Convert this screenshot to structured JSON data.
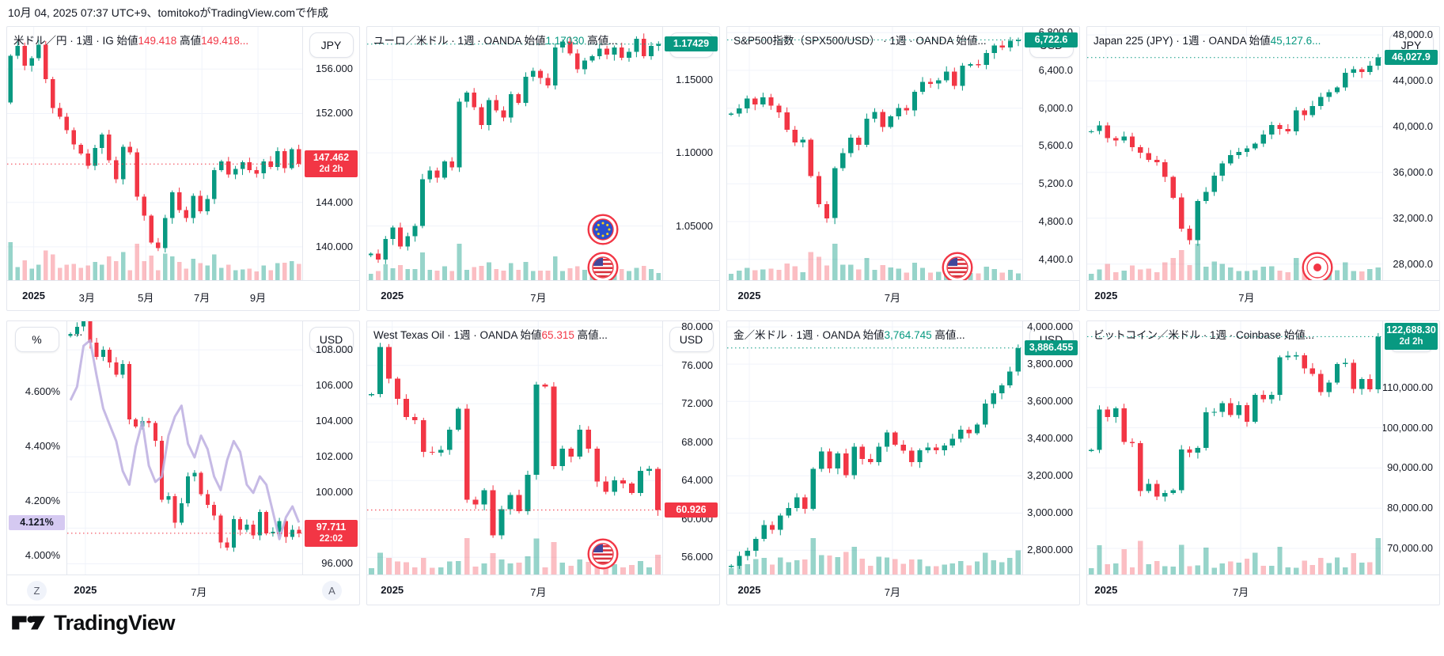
{
  "header": {
    "date_line": "10月 04, 2025 07:37 UTC+9、tomitokoがTradingView.comで作成"
  },
  "footer": {
    "logo_text": "TradingView"
  },
  "colors": {
    "up": "#089981",
    "down": "#F23645",
    "vol_up": "rgba(8,153,129,0.42)",
    "vol_down": "rgba(242,54,69,0.32)",
    "line_purple": "#BCAEE0",
    "badge_purple_bg": "#D5C9F1",
    "grid": "#F0F3FA",
    "border": "#E4E7EE",
    "text": "#131722"
  },
  "chart_data": [
    {
      "name": "usdjpy",
      "type": "candlestick",
      "legend": [
        {
          "text": "米ドル／円 · 1週 · IG  始値",
          "tone": "plain"
        },
        {
          "text": "149.418",
          "tone": "down"
        },
        {
          "text": " 高値",
          "tone": "plain"
        },
        {
          "text": "149.418...",
          "tone": "down"
        }
      ],
      "unit": "JPY",
      "axis": {
        "min": 137.0,
        "max": 159.8,
        "ticks": [
          {
            "v": 156,
            "label": "156.000"
          },
          {
            "v": 152,
            "label": "152.000"
          },
          {
            "v": 148,
            "label": "148.000"
          },
          {
            "v": 144,
            "label": "144.000"
          },
          {
            "v": 140,
            "label": "140.000"
          }
        ]
      },
      "badge": {
        "label": "147.462",
        "sub": "2d 2h",
        "tone": "down",
        "value": 147.462
      },
      "dotted": {
        "value": 147.462,
        "tone": "down"
      },
      "open0": 153.0,
      "closes": [
        157.2,
        158.1,
        156.3,
        157.0,
        158.2,
        155.1,
        152.5,
        151.7,
        150.5,
        149.2,
        148.4,
        147.3,
        148.9,
        150.1,
        147.8,
        146.1,
        149.0,
        148.5,
        144.5,
        142.8,
        140.4,
        139.9,
        142.6,
        144.9,
        143.3,
        142.6,
        144.6,
        143.2,
        144.3,
        146.9,
        147.7,
        146.5,
        147.0,
        147.6,
        146.9,
        146.6,
        147.7,
        147.2,
        148.6,
        147.1,
        148.8,
        147.462
      ],
      "time_labels": [
        {
          "text": "2025",
          "x": 0.09,
          "bold": true
        },
        {
          "text": "3月",
          "x": 0.27
        },
        {
          "text": "5月",
          "x": 0.47
        },
        {
          "text": "7月",
          "x": 0.66
        },
        {
          "text": "9月",
          "x": 0.85
        }
      ],
      "flags": []
    },
    {
      "name": "eurusd",
      "type": "candlestick",
      "legend": [
        {
          "text": "ユーロ／米ドル · 1週 · OANDA  始値",
          "tone": "plain"
        },
        {
          "text": "1.17030",
          "tone": "up"
        },
        {
          "text": " 高値...",
          "tone": "plain"
        }
      ],
      "unit": "USD",
      "axis": {
        "min": 1.013,
        "max": 1.186,
        "ticks": [
          {
            "v": 1.15,
            "label": "1.15000"
          },
          {
            "v": 1.1,
            "label": "1.10000"
          },
          {
            "v": 1.05,
            "label": "1.05000"
          }
        ]
      },
      "badge": {
        "label": "1.17429",
        "tone": "up",
        "value": 1.17429
      },
      "dotted": {
        "value": 1.17429,
        "tone": "up"
      },
      "closes": [
        1.031,
        1.027,
        1.041,
        1.049,
        1.036,
        1.043,
        1.05,
        1.082,
        1.088,
        1.083,
        1.094,
        1.09,
        1.135,
        1.141,
        1.131,
        1.119,
        1.136,
        1.129,
        1.124,
        1.14,
        1.134,
        1.152,
        1.156,
        1.151,
        1.146,
        1.172,
        1.176,
        1.168,
        1.157,
        1.163,
        1.166,
        1.171,
        1.167,
        1.172,
        1.165,
        1.169,
        1.178,
        1.166,
        1.173,
        1.17429
      ],
      "time_labels": [
        {
          "text": "2025",
          "x": 0.085,
          "bold": true
        },
        {
          "text": "7月",
          "x": 0.58
        }
      ],
      "flags": [
        {
          "type": "eu",
          "x": 0.8,
          "y": 0.8
        },
        {
          "type": "us",
          "x": 0.8,
          "y": 0.95
        }
      ]
    },
    {
      "name": "spx500",
      "type": "candlestick",
      "legend": [
        {
          "text": "S&P500指数（SPX500/USD） · 1週 · OANDA  始値...",
          "tone": "plain"
        }
      ],
      "unit": "USD",
      "axis": {
        "min": 4180,
        "max": 6860,
        "ticks": [
          {
            "v": 6800,
            "label": "6,800.0"
          },
          {
            "v": 6400,
            "label": "6,400.0"
          },
          {
            "v": 6000,
            "label": "6,000.0"
          },
          {
            "v": 5600,
            "label": "5,600.0"
          },
          {
            "v": 5200,
            "label": "5,200.0"
          },
          {
            "v": 4800,
            "label": "4,800.0"
          },
          {
            "v": 4400,
            "label": "4,400.0"
          }
        ]
      },
      "badge": {
        "label": "6,722.6",
        "tone": "up",
        "value": 6722.6
      },
      "dotted": {
        "value": 6722.6,
        "tone": "up"
      },
      "closes": [
        5942,
        5996,
        6101,
        6040,
        6114,
        6025,
        5954,
        5770,
        5638,
        5667,
        5282,
        4983,
        4835,
        5363,
        5525,
        5686,
        5611,
        5888,
        5958,
        5802,
        5912,
        6000,
        5977,
        6173,
        6279,
        6259,
        6296,
        6388,
        6238,
        6449,
        6466,
        6460,
        6584,
        6664,
        6643,
        6715,
        6722.6
      ],
      "time_labels": [
        {
          "text": "2025",
          "x": 0.075,
          "bold": true
        },
        {
          "text": "7月",
          "x": 0.56
        }
      ],
      "flags": [
        {
          "type": "us",
          "x": 0.78,
          "y": 0.95
        }
      ]
    },
    {
      "name": "japan225",
      "type": "candlestick",
      "legend": [
        {
          "text": "Japan 225 (JPY) · 1週 · OANDA  始値",
          "tone": "plain"
        },
        {
          "text": "45,127.6...",
          "tone": "up"
        }
      ],
      "unit": "JPY",
      "axis": {
        "min": 26600,
        "max": 48700,
        "ticks": [
          {
            "v": 48000,
            "label": "48,000.0"
          },
          {
            "v": 44000,
            "label": "44,000.0"
          },
          {
            "v": 40000,
            "label": "40,000.0"
          },
          {
            "v": 36000,
            "label": "36,000.0"
          },
          {
            "v": 32000,
            "label": "32,000.0"
          },
          {
            "v": 28000,
            "label": "28,000.0"
          }
        ]
      },
      "badge": {
        "label": "46,027.9",
        "tone": "up",
        "value": 46027.9
      },
      "dotted": {
        "value": 46027.9,
        "tone": "up"
      },
      "closes": [
        39600,
        40100,
        39000,
        38800,
        39150,
        38200,
        37700,
        37100,
        36900,
        35600,
        33800,
        31100,
        30100,
        33500,
        34300,
        35700,
        36800,
        37500,
        37800,
        38100,
        38500,
        39300,
        40150,
        39800,
        39600,
        41400,
        41000,
        41800,
        42600,
        43000,
        43400,
        44700,
        45000,
        44750,
        45300,
        46027.9
      ],
      "time_labels": [
        {
          "text": "2025",
          "x": 0.064,
          "bold": true
        },
        {
          "text": "7月",
          "x": 0.54
        }
      ],
      "flags": [
        {
          "type": "jp",
          "x": 0.78,
          "y": 0.95
        }
      ]
    },
    {
      "name": "dxy-us10y",
      "type": "candlestick",
      "legend": [
        {
          "text": "...",
          "tone": "plain"
        }
      ],
      "unit": "USD",
      "left_unit": "%",
      "axis": {
        "min": 95.4,
        "max": 109.6,
        "ticks": [
          {
            "v": 108,
            "label": "108.000"
          },
          {
            "v": 106,
            "label": "106.000"
          },
          {
            "v": 104,
            "label": "104.000"
          },
          {
            "v": 102,
            "label": "102.000"
          },
          {
            "v": 100,
            "label": "100.000"
          },
          {
            "v": 98,
            "label": "98.000"
          },
          {
            "v": 96,
            "label": "96.000"
          }
        ]
      },
      "left_axis": {
        "min": 3.93,
        "max": 4.86,
        "ticks": [
          {
            "v": 4.6,
            "label": "4.600%"
          },
          {
            "v": 4.4,
            "label": "4.400%"
          },
          {
            "v": 4.2,
            "label": "4.200%"
          },
          {
            "v": 4.0,
            "label": "4.000%"
          }
        ]
      },
      "badge": {
        "label": "97.711",
        "sub": "22:02",
        "tone": "down",
        "value": 97.711
      },
      "left_badge": {
        "label": "4.121%",
        "tone": "purple",
        "value": 4.121
      },
      "dotted": {
        "value": 97.711,
        "tone": "down"
      },
      "volume": false,
      "closes": [
        108.9,
        109.3,
        109.9,
        108.4,
        107.6,
        108.0,
        107.3,
        106.6,
        107.2,
        104.1,
        103.7,
        104.0,
        103.9,
        102.9,
        99.6,
        99.8,
        98.3,
        99.4,
        100.9,
        101.1,
        99.9,
        99.3,
        98.7,
        97.2,
        96.9,
        98.5,
        97.9,
        98.2,
        97.6,
        98.9,
        97.7,
        97.8,
        98.4,
        97.5,
        97.9,
        97.711
      ],
      "line": {
        "axis": "left",
        "values": [
          4.57,
          4.62,
          4.77,
          4.79,
          4.66,
          4.54,
          4.48,
          4.42,
          4.31,
          4.26,
          4.4,
          4.49,
          4.33,
          4.27,
          4.29,
          4.44,
          4.51,
          4.55,
          4.41,
          4.36,
          4.44,
          4.39,
          4.29,
          4.24,
          4.35,
          4.42,
          4.38,
          4.26,
          4.23,
          4.29,
          4.26,
          4.16,
          4.06,
          4.14,
          4.18,
          4.121
        ]
      },
      "time_labels": [
        {
          "text": "2025",
          "x": 0.077,
          "bold": true
        },
        {
          "text": "7月",
          "x": 0.56
        }
      ],
      "flags": [],
      "corner_left": "Z",
      "corner_right": "A"
    },
    {
      "name": "wti",
      "type": "candlestick",
      "legend": [
        {
          "text": "West Texas Oil · 1週 · OANDA  始値",
          "tone": "plain"
        },
        {
          "text": "65.315",
          "tone": "down"
        },
        {
          "text": " 高値...",
          "tone": "plain"
        }
      ],
      "unit": "USD",
      "axis": {
        "min": 54.2,
        "max": 80.6,
        "ticks": [
          {
            "v": 80,
            "label": "80.000"
          },
          {
            "v": 76,
            "label": "76.000"
          },
          {
            "v": 72,
            "label": "72.000"
          },
          {
            "v": 68,
            "label": "68.000"
          },
          {
            "v": 64,
            "label": "64.000"
          },
          {
            "v": 60,
            "label": "60.000"
          },
          {
            "v": 56,
            "label": "56.000"
          }
        ]
      },
      "badge": {
        "label": "60.926",
        "tone": "down",
        "value": 60.926
      },
      "dotted": {
        "value": 60.926,
        "tone": "down"
      },
      "closes": [
        73.0,
        77.9,
        74.6,
        72.5,
        70.6,
        70.3,
        67.0,
        66.9,
        67.2,
        69.3,
        71.5,
        61.99,
        61.5,
        63.0,
        58.3,
        61.0,
        62.5,
        60.8,
        64.6,
        74.0,
        73.8,
        65.5,
        67.3,
        66.5,
        69.3,
        67.3,
        63.9,
        62.8,
        64.0,
        63.7,
        62.7,
        65.0,
        65.2,
        60.926
      ],
      "time_labels": [
        {
          "text": "2025",
          "x": 0.085,
          "bold": true
        },
        {
          "text": "7月",
          "x": 0.58
        }
      ],
      "flags": [
        {
          "type": "us",
          "x": 0.8,
          "y": 0.92
        }
      ]
    },
    {
      "name": "gold",
      "type": "candlestick",
      "legend": [
        {
          "text": "金／米ドル · 1週 · OANDA  始値",
          "tone": "plain"
        },
        {
          "text": "3,764.745",
          "tone": "up"
        },
        {
          "text": " 高値...",
          "tone": "plain"
        }
      ],
      "unit": "USD",
      "axis": {
        "min": 2670,
        "max": 4030,
        "ticks": [
          {
            "v": 4000,
            "label": "4,000.000"
          },
          {
            "v": 3800,
            "label": "3,800.000"
          },
          {
            "v": 3600,
            "label": "3,600.000"
          },
          {
            "v": 3400,
            "label": "3,400.000"
          },
          {
            "v": 3200,
            "label": "3,200.000"
          },
          {
            "v": 3000,
            "label": "3,000.000"
          },
          {
            "v": 2800,
            "label": "2,800.000"
          }
        ]
      },
      "badge": {
        "label": "3,886.455",
        "tone": "up",
        "value": 3886.455
      },
      "dotted": {
        "value": 3886.455,
        "tone": "up"
      },
      "closes": [
        2717,
        2770,
        2797,
        2862,
        2936,
        2910,
        2986,
        3028,
        3085,
        3023,
        3238,
        3330,
        3240,
        3320,
        3204,
        3357,
        3290,
        3274,
        3356,
        3432,
        3368,
        3336,
        3274,
        3337,
        3352,
        3338,
        3363,
        3398,
        3448,
        3429,
        3476,
        3587,
        3643,
        3686,
        3760,
        3886.455
      ],
      "time_labels": [
        {
          "text": "2025",
          "x": 0.075,
          "bold": true
        },
        {
          "text": "7月",
          "x": 0.56
        }
      ],
      "flags": []
    },
    {
      "name": "btcusd",
      "type": "candlestick",
      "legend": [
        {
          "text": "ビットコイン／米ドル · 1週 · Coinbase  始値...",
          "tone": "plain"
        }
      ],
      "unit": "USD",
      "axis": {
        "min": 63500,
        "max": 126500,
        "ticks": [
          {
            "v": 110000,
            "label": "110,000.00"
          },
          {
            "v": 100000,
            "label": "100,000.00"
          },
          {
            "v": 90000,
            "label": "90,000.00"
          },
          {
            "v": 80000,
            "label": "80,000.00"
          },
          {
            "v": 70000,
            "label": "70,000.00"
          }
        ]
      },
      "badge": {
        "label": "122,688.30",
        "sub": "2d 2h",
        "tone": "up",
        "value": 122688.3
      },
      "dotted": {
        "value": 122688.3,
        "tone": "up"
      },
      "closes": [
        94500,
        104500,
        102700,
        104800,
        96500,
        96200,
        84300,
        86000,
        82900,
        83800,
        84500,
        94600,
        93800,
        95000,
        103900,
        104000,
        106100,
        103200,
        105600,
        101500,
        108200,
        107100,
        108200,
        117500,
        117900,
        118000,
        114800,
        113400,
        108900,
        111200,
        115900,
        116200,
        109700,
        112100,
        109600,
        122688.3
      ],
      "time_labels": [
        {
          "text": "2025",
          "x": 0.064,
          "bold": true
        },
        {
          "text": "7月",
          "x": 0.52
        }
      ],
      "flags": []
    }
  ]
}
